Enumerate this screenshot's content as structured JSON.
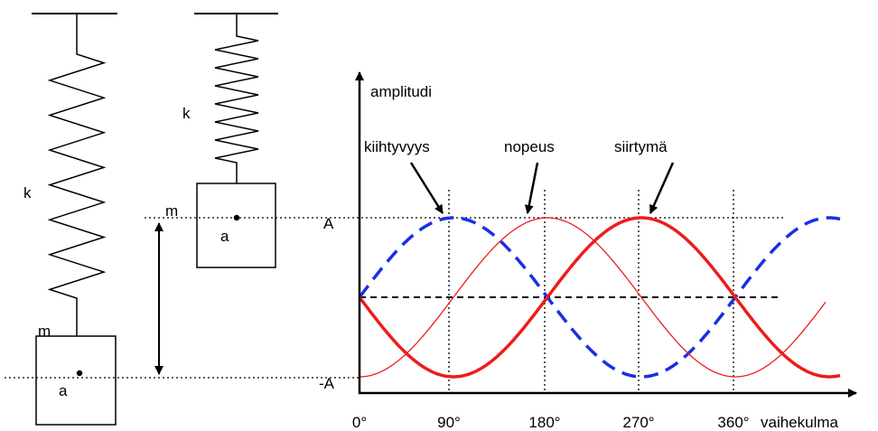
{
  "left_system": {
    "spring": "k",
    "mass": "m",
    "point": "a"
  },
  "right_system": {
    "spring": "k",
    "mass": "m",
    "point": "a"
  },
  "graph": {
    "y_axis": "amplitudi",
    "x_axis": "vaihekulma",
    "y_top": "A",
    "y_bottom": "-A",
    "x_ticks": [
      "0°",
      "90°",
      "180°",
      "270°",
      "360°"
    ],
    "curves": [
      "kiihtyvyys",
      "nopeus",
      "siirtymä"
    ]
  }
}
